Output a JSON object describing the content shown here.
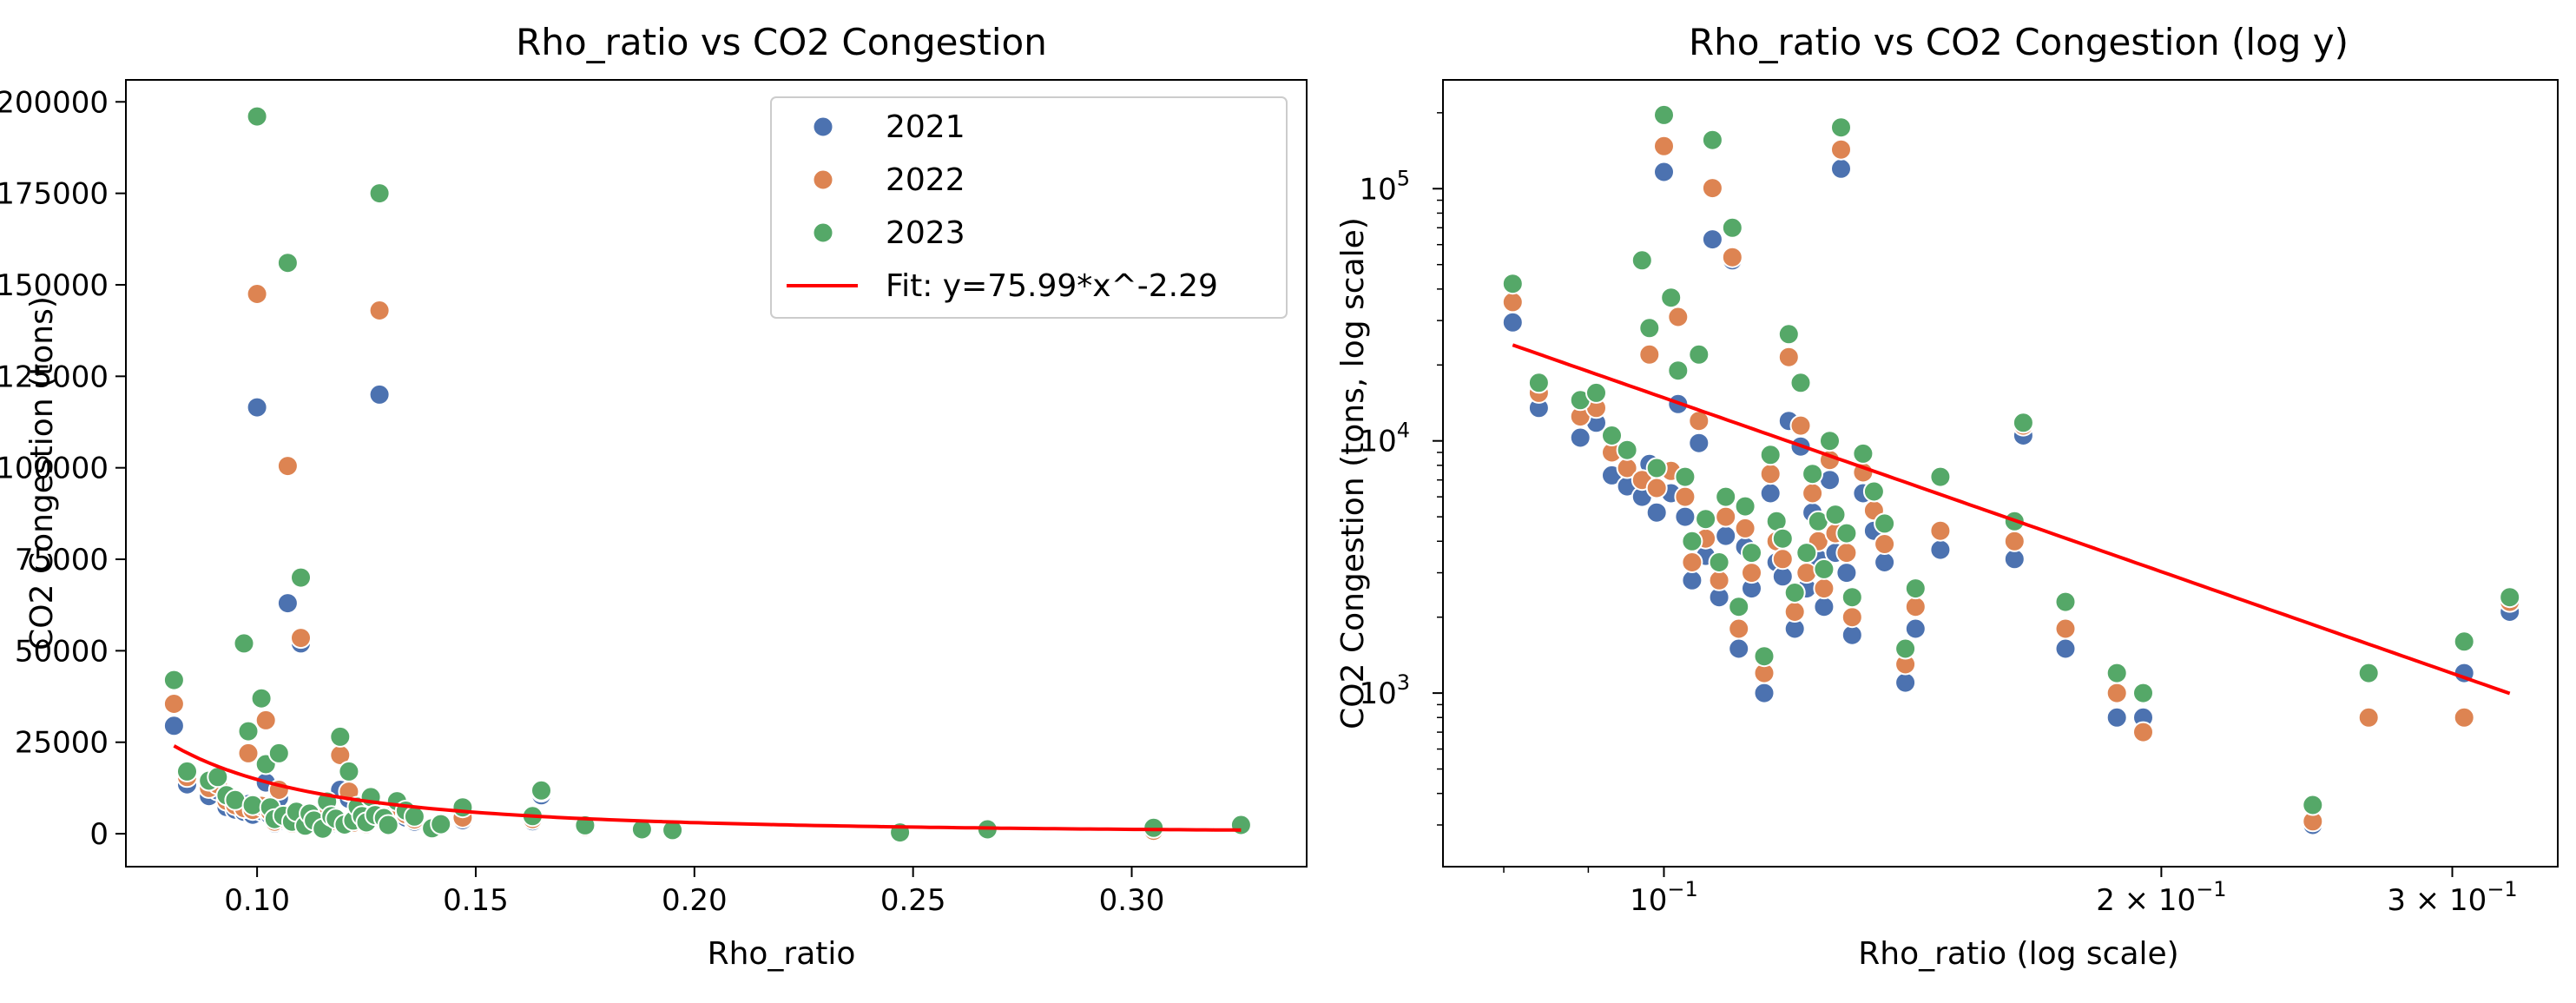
{
  "colors": {
    "series": [
      "#4c72b0",
      "#dd8452",
      "#55a868"
    ],
    "fit": "#ff0000",
    "axis": "#000000",
    "marker_edge": "#ffffff"
  },
  "chart_data": [
    {
      "type": "scatter",
      "title": "Rho_ratio vs CO2 Congestion",
      "xlabel": "Rho_ratio",
      "ylabel": "CO2 Congestion (tons)",
      "xscale": "linear",
      "yscale": "linear",
      "xlim": [
        0.07,
        0.34
      ],
      "ylim": [
        -9000,
        206000
      ],
      "xticks": [
        0.1,
        0.15,
        0.2,
        0.25,
        0.3
      ],
      "xticklabels": [
        "0.10",
        "0.15",
        "0.20",
        "0.25",
        "0.30"
      ],
      "yticks": [
        0,
        25000,
        50000,
        75000,
        100000,
        125000,
        150000,
        175000,
        200000
      ],
      "yticklabels": [
        "0",
        "25000",
        "50000",
        "75000",
        "100000",
        "125000",
        "150000",
        "175000",
        "200000"
      ],
      "grid": false,
      "legend_position": "top-right",
      "legend": [
        "2021",
        "2022",
        "2023",
        "Fit: y=75.99*x^-2.29"
      ],
      "fit": {
        "a": 75.99,
        "b": -2.29,
        "x_range": [
          0.081,
          0.325
        ]
      },
      "series": [
        {
          "name": "2021",
          "points": [
            [
              0.081,
              29500
            ],
            [
              0.084,
              13500
            ],
            [
              0.089,
              10300
            ],
            [
              0.091,
              11800
            ],
            [
              0.093,
              7300
            ],
            [
              0.095,
              6600
            ],
            [
              0.097,
              6000
            ],
            [
              0.098,
              8100
            ],
            [
              0.099,
              5200
            ],
            [
              0.1,
              116500
            ],
            [
              0.101,
              6200
            ],
            [
              0.102,
              14000
            ],
            [
              0.103,
              5000
            ],
            [
              0.104,
              2800
            ],
            [
              0.105,
              9800
            ],
            [
              0.106,
              3500
            ],
            [
              0.107,
              63000
            ],
            [
              0.108,
              2400
            ],
            [
              0.109,
              4200
            ],
            [
              0.11,
              52000
            ],
            [
              0.111,
              1500
            ],
            [
              0.112,
              3800
            ],
            [
              0.113,
              2600
            ],
            [
              0.115,
              1000
            ],
            [
              0.116,
              6200
            ],
            [
              0.117,
              3300
            ],
            [
              0.118,
              2900
            ],
            [
              0.119,
              12000
            ],
            [
              0.12,
              1800
            ],
            [
              0.121,
              9500
            ],
            [
              0.122,
              2600
            ],
            [
              0.123,
              5200
            ],
            [
              0.124,
              3400
            ],
            [
              0.125,
              2200
            ],
            [
              0.126,
              7000
            ],
            [
              0.127,
              3600
            ],
            [
              0.128,
              120000
            ],
            [
              0.129,
              3000
            ],
            [
              0.13,
              1700
            ],
            [
              0.132,
              6200
            ],
            [
              0.134,
              4400
            ],
            [
              0.136,
              3300
            ],
            [
              0.14,
              1100
            ],
            [
              0.142,
              1800
            ],
            [
              0.147,
              3700
            ],
            [
              0.163,
              3400
            ],
            [
              0.165,
              10500
            ],
            [
              0.175,
              1500
            ],
            [
              0.188,
              800
            ],
            [
              0.195,
              800
            ],
            [
              0.247,
              300
            ],
            [
              0.267,
              800
            ],
            [
              0.305,
              1200
            ],
            [
              0.325,
              2100
            ]
          ]
        },
        {
          "name": "2022",
          "points": [
            [
              0.081,
              35500
            ],
            [
              0.084,
              15500
            ],
            [
              0.089,
              12500
            ],
            [
              0.091,
              13500
            ],
            [
              0.093,
              9000
            ],
            [
              0.095,
              7800
            ],
            [
              0.097,
              7000
            ],
            [
              0.098,
              22000
            ],
            [
              0.099,
              6500
            ],
            [
              0.1,
              147500
            ],
            [
              0.101,
              7600
            ],
            [
              0.102,
              31000
            ],
            [
              0.103,
              6000
            ],
            [
              0.104,
              3300
            ],
            [
              0.105,
              12000
            ],
            [
              0.106,
              4100
            ],
            [
              0.107,
              100500
            ],
            [
              0.108,
              2800
            ],
            [
              0.109,
              5000
            ],
            [
              0.11,
              53500
            ],
            [
              0.111,
              1800
            ],
            [
              0.112,
              4500
            ],
            [
              0.113,
              3000
            ],
            [
              0.115,
              1200
            ],
            [
              0.116,
              7400
            ],
            [
              0.117,
              4000
            ],
            [
              0.118,
              3400
            ],
            [
              0.119,
              21500
            ],
            [
              0.12,
              2100
            ],
            [
              0.121,
              11500
            ],
            [
              0.122,
              3000
            ],
            [
              0.123,
              6200
            ],
            [
              0.124,
              4000
            ],
            [
              0.125,
              2600
            ],
            [
              0.126,
              8400
            ],
            [
              0.127,
              4300
            ],
            [
              0.128,
              143000
            ],
            [
              0.129,
              3600
            ],
            [
              0.13,
              2000
            ],
            [
              0.132,
              7500
            ],
            [
              0.134,
              5300
            ],
            [
              0.136,
              3900
            ],
            [
              0.14,
              1300
            ],
            [
              0.142,
              2200
            ],
            [
              0.147,
              4400
            ],
            [
              0.163,
              4000
            ],
            [
              0.165,
              11500
            ],
            [
              0.175,
              1800
            ],
            [
              0.188,
              1000
            ],
            [
              0.195,
              700
            ],
            [
              0.247,
              310
            ],
            [
              0.267,
              800
            ],
            [
              0.305,
              800
            ],
            [
              0.325,
              2300
            ]
          ]
        },
        {
          "name": "2023",
          "points": [
            [
              0.081,
              42000
            ],
            [
              0.084,
              17000
            ],
            [
              0.089,
              14500
            ],
            [
              0.091,
              15500
            ],
            [
              0.093,
              10500
            ],
            [
              0.095,
              9200
            ],
            [
              0.097,
              52000
            ],
            [
              0.098,
              28000
            ],
            [
              0.099,
              7800
            ],
            [
              0.1,
              196000
            ],
            [
              0.101,
              37000
            ],
            [
              0.102,
              19000
            ],
            [
              0.103,
              7200
            ],
            [
              0.104,
              4000
            ],
            [
              0.105,
              22000
            ],
            [
              0.106,
              4900
            ],
            [
              0.107,
              156000
            ],
            [
              0.108,
              3300
            ],
            [
              0.109,
              6000
            ],
            [
              0.11,
              70000
            ],
            [
              0.111,
              2200
            ],
            [
              0.112,
              5500
            ],
            [
              0.113,
              3600
            ],
            [
              0.115,
              1400
            ],
            [
              0.116,
              8800
            ],
            [
              0.117,
              4800
            ],
            [
              0.118,
              4100
            ],
            [
              0.119,
              26500
            ],
            [
              0.12,
              2500
            ],
            [
              0.121,
              17000
            ],
            [
              0.122,
              3600
            ],
            [
              0.123,
              7400
            ],
            [
              0.124,
              4800
            ],
            [
              0.125,
              3100
            ],
            [
              0.126,
              10000
            ],
            [
              0.127,
              5100
            ],
            [
              0.128,
              175000
            ],
            [
              0.129,
              4300
            ],
            [
              0.13,
              2400
            ],
            [
              0.132,
              8900
            ],
            [
              0.134,
              6300
            ],
            [
              0.136,
              4700
            ],
            [
              0.14,
              1500
            ],
            [
              0.142,
              2600
            ],
            [
              0.147,
              7200
            ],
            [
              0.163,
              4800
            ],
            [
              0.165,
              11800
            ],
            [
              0.175,
              2300
            ],
            [
              0.188,
              1200
            ],
            [
              0.195,
              1000
            ],
            [
              0.247,
              360
            ],
            [
              0.267,
              1200
            ],
            [
              0.305,
              1600
            ],
            [
              0.325,
              2400
            ]
          ]
        }
      ]
    },
    {
      "type": "scatter",
      "title": "Rho_ratio vs CO2 Congestion (log y)",
      "xlabel": "Rho_ratio (log scale)",
      "ylabel": "CO2 Congestion (tons, log scale)",
      "xscale": "log",
      "yscale": "log",
      "xlim": [
        0.0735,
        0.3475
      ],
      "ylim": [
        205,
        270000
      ],
      "xticks": [
        0.1,
        0.2,
        0.3
      ],
      "xticklabels": [
        "10",
        "2 × 10",
        "3 × 10"
      ],
      "xtick_exponent": "−1",
      "yticks": [
        1000,
        10000,
        100000
      ],
      "yticklabels": [
        "10",
        "10",
        "10"
      ],
      "ytick_exponents": [
        "3",
        "4",
        "5"
      ],
      "grid": false,
      "legend_position": "none",
      "fit": {
        "a": 75.99,
        "b": -2.29,
        "x_range": [
          0.081,
          0.325
        ]
      },
      "same_data_as": "chart_data.0.series"
    }
  ]
}
